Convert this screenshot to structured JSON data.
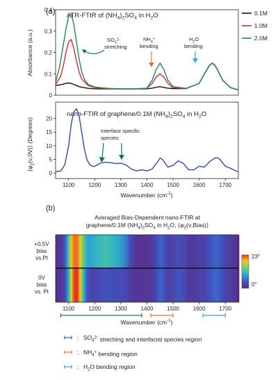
{
  "panel_a_label": "(a)",
  "panel_b_label": "(b)",
  "chart_data": [
    {
      "type": "line",
      "title": "ATR-FTIR of (NH4)2SO4 in H2O",
      "title_parts": [
        "ATR-FTIR of (NH",
        "4",
        ")",
        "2",
        "SO",
        "4",
        " in H",
        "2",
        "O"
      ],
      "xlabel": "",
      "ylabel": "Absorbance (a.u.)",
      "xlim": [
        1050,
        1750
      ],
      "ylim": [
        0,
        0.4
      ],
      "yticks": [
        "0",
        "0.1",
        "0.2",
        "0.3",
        "0.4"
      ],
      "legend_position": "top-right",
      "series": [
        {
          "name": "0.1M",
          "color": "#111111",
          "x": [
            1050,
            1075,
            1090,
            1100,
            1110,
            1120,
            1130,
            1140,
            1150,
            1175,
            1200,
            1250,
            1300,
            1350,
            1400,
            1420,
            1440,
            1450,
            1460,
            1480,
            1500,
            1550,
            1600,
            1620,
            1640,
            1650,
            1660,
            1670,
            1690,
            1720,
            1750
          ],
          "y": [
            0.045,
            0.05,
            0.055,
            0.057,
            0.055,
            0.05,
            0.045,
            0.04,
            0.037,
            0.032,
            0.03,
            0.029,
            0.029,
            0.029,
            0.03,
            0.033,
            0.038,
            0.04,
            0.037,
            0.033,
            0.031,
            0.031,
            0.055,
            0.1,
            0.14,
            0.15,
            0.14,
            0.12,
            0.07,
            0.035,
            0.025
          ]
        },
        {
          "name": "1.0M",
          "color": "#d62a2a",
          "x": [
            1050,
            1070,
            1080,
            1090,
            1100,
            1110,
            1120,
            1130,
            1140,
            1150,
            1175,
            1200,
            1250,
            1300,
            1350,
            1400,
            1420,
            1435,
            1450,
            1465,
            1480,
            1500,
            1550,
            1600,
            1620,
            1640,
            1650,
            1660,
            1670,
            1690,
            1720,
            1750
          ],
          "y": [
            0.05,
            0.09,
            0.14,
            0.2,
            0.25,
            0.26,
            0.22,
            0.16,
            0.11,
            0.075,
            0.045,
            0.035,
            0.03,
            0.03,
            0.03,
            0.032,
            0.055,
            0.085,
            0.1,
            0.085,
            0.055,
            0.035,
            0.031,
            0.055,
            0.1,
            0.14,
            0.15,
            0.14,
            0.12,
            0.07,
            0.035,
            0.025
          ]
        },
        {
          "name": "2.0M",
          "color": "#1f8a52",
          "x": [
            1050,
            1065,
            1080,
            1090,
            1100,
            1110,
            1120,
            1130,
            1140,
            1150,
            1160,
            1175,
            1200,
            1250,
            1300,
            1350,
            1400,
            1420,
            1435,
            1450,
            1465,
            1480,
            1500,
            1550,
            1600,
            1620,
            1640,
            1650,
            1660,
            1670,
            1690,
            1720,
            1750
          ],
          "y": [
            0.06,
            0.13,
            0.24,
            0.31,
            0.37,
            0.38,
            0.33,
            0.25,
            0.17,
            0.11,
            0.075,
            0.05,
            0.038,
            0.032,
            0.03,
            0.03,
            0.033,
            0.07,
            0.12,
            0.15,
            0.12,
            0.07,
            0.04,
            0.032,
            0.055,
            0.1,
            0.14,
            0.15,
            0.14,
            0.12,
            0.07,
            0.035,
            0.025
          ]
        }
      ],
      "annotations": [
        {
          "lines": [
            "SO",
            "4",
            "2-",
            "stretching"
          ],
          "color": "#0f6f6a"
        },
        {
          "lines": [
            "NH",
            "4",
            "+",
            "bending"
          ],
          "color": "#e07b2e"
        },
        {
          "lines": [
            "H",
            "2",
            "O",
            "bending"
          ],
          "color": "#2ea8d8"
        }
      ]
    },
    {
      "type": "line",
      "title": "nano-FTIR of graphene/0.1M (NH4)2SO4 in H2O",
      "title_parts": [
        "nano-FTIR of graphene/0.1M (NH",
        "4",
        ")",
        "2",
        "SO",
        "4",
        " in H",
        "2",
        "O"
      ],
      "xlabel": "Wavenumber (cm-1)",
      "xlabel_parts": [
        "Wavenumber (cm",
        "-1",
        ")"
      ],
      "ylabel": "⟨φ2(ν,0V)⟩ (Degrees)",
      "ylabel_parts": [
        "⟨φ",
        "2",
        "(ν,0V)⟩ (Degrees)"
      ],
      "xlim": [
        1050,
        1750
      ],
      "ylim": [
        -2,
        26
      ],
      "xticks": [
        1100,
        1200,
        1300,
        1400,
        1500,
        1600,
        1700
      ],
      "yticks": [
        0,
        5,
        10,
        15,
        20
      ],
      "grid": false,
      "series": [
        {
          "name": "",
          "color": "#2f4c9e",
          "x": [
            1050,
            1070,
            1085,
            1100,
            1110,
            1120,
            1130,
            1140,
            1150,
            1160,
            1170,
            1180,
            1190,
            1200,
            1210,
            1220,
            1240,
            1260,
            1280,
            1300,
            1320,
            1340,
            1360,
            1380,
            1400,
            1420,
            1440,
            1450,
            1460,
            1480,
            1500,
            1520,
            1540,
            1560,
            1580,
            1600,
            1620,
            1640,
            1660,
            1670,
            1680,
            1700,
            1720,
            1740,
            1750
          ],
          "y": [
            0.5,
            0.8,
            3,
            10,
            18,
            22.5,
            23.5,
            21,
            15,
            9,
            5,
            3.2,
            2.5,
            2.5,
            3,
            3.6,
            4,
            3.8,
            3.5,
            3.6,
            3,
            1.5,
            0.8,
            1.2,
            0.8,
            1.5,
            4,
            5.5,
            5,
            2.2,
            2.8,
            4.5,
            3.5,
            1.2,
            1.2,
            2.5,
            2.2,
            4.2,
            5.5,
            5.6,
            5,
            2.5,
            1.8,
            0.8,
            0.5
          ]
        }
      ],
      "annotations": [
        {
          "text": "Interface specific",
          "color": "#222222"
        },
        {
          "text": "species",
          "color": "#222222"
        }
      ]
    },
    {
      "type": "heatmap",
      "title": "Averaged Bias-Dependent nano-FTIR at",
      "subtitle_parts": [
        "graphene/0.1M (NH",
        "4",
        ")",
        "2",
        "SO",
        "4",
        " in H",
        "2",
        "O, ⟨φ",
        "2",
        "(ν,Bias)⟩"
      ],
      "xlabel": "Wavenumber (cm-1)",
      "xlabel_parts": [
        "Wavenumber (cm",
        "-1",
        ")"
      ],
      "xlim": [
        1050,
        1750
      ],
      "xticks": [
        1100,
        1200,
        1300,
        1400,
        1500,
        1600,
        1700
      ],
      "rows": [
        {
          "label_lines": [
            "+0.5V",
            "bias",
            "vs.Pt"
          ]
        },
        {
          "label_lines": [
            "0V",
            "bias",
            "vs. Pt"
          ]
        }
      ],
      "colorbar": {
        "min_label": "0°",
        "max_label": "23°",
        "min": 0,
        "max": 23
      },
      "x": [
        1050,
        1070,
        1085,
        1100,
        1110,
        1120,
        1130,
        1140,
        1150,
        1160,
        1170,
        1180,
        1190,
        1200,
        1210,
        1220,
        1240,
        1260,
        1280,
        1300,
        1320,
        1340,
        1360,
        1380,
        1400,
        1420,
        1440,
        1450,
        1460,
        1480,
        1500,
        1520,
        1540,
        1560,
        1580,
        1600,
        1620,
        1640,
        1660,
        1670,
        1680,
        1700,
        1720,
        1740,
        1750
      ],
      "values": [
        [
          0.5,
          1,
          4,
          12,
          19,
          21,
          21.5,
          20,
          16,
          12,
          9.5,
          9,
          9.5,
          10,
          10.5,
          11,
          11.5,
          11,
          10,
          9,
          7,
          3,
          0.5,
          0.5,
          0.8,
          1.5,
          4,
          5.5,
          5,
          2.2,
          2.5,
          3.5,
          3,
          1.2,
          1.2,
          2.5,
          2.2,
          4,
          5.5,
          5.6,
          5,
          2.5,
          1.8,
          0.8,
          0.5
        ],
        [
          0.5,
          0.8,
          3,
          10,
          18,
          22.5,
          23.5,
          21,
          15,
          9,
          5,
          3.2,
          2.5,
          2.5,
          3,
          3.6,
          4,
          3.8,
          3.5,
          3.6,
          3,
          1.5,
          0.8,
          1.2,
          0.8,
          1.5,
          4,
          5.5,
          5,
          2.2,
          2.8,
          4.5,
          3.5,
          1.2,
          1.2,
          2.5,
          2.2,
          4.2,
          5.5,
          5.6,
          5,
          2.5,
          1.8,
          0.8,
          0.5
        ]
      ],
      "brackets": [
        {
          "from": 1070,
          "to": 1380,
          "color": "#1f6f8b"
        },
        {
          "from": 1415,
          "to": 1500,
          "color": "#e07b2e"
        },
        {
          "from": 1615,
          "to": 1700,
          "color": "#2ea8d8"
        }
      ],
      "legend_items": [
        {
          "color": "#1f6f8b",
          "parts": [
            "SO",
            "4",
            "2-",
            " streching and interfacial species region"
          ]
        },
        {
          "color": "#e07b2e",
          "parts": [
            "NH",
            "4",
            "+",
            " bending region"
          ]
        },
        {
          "color": "#2ea8d8",
          "parts": [
            "H",
            "2",
            "O  bending region"
          ]
        }
      ]
    }
  ]
}
